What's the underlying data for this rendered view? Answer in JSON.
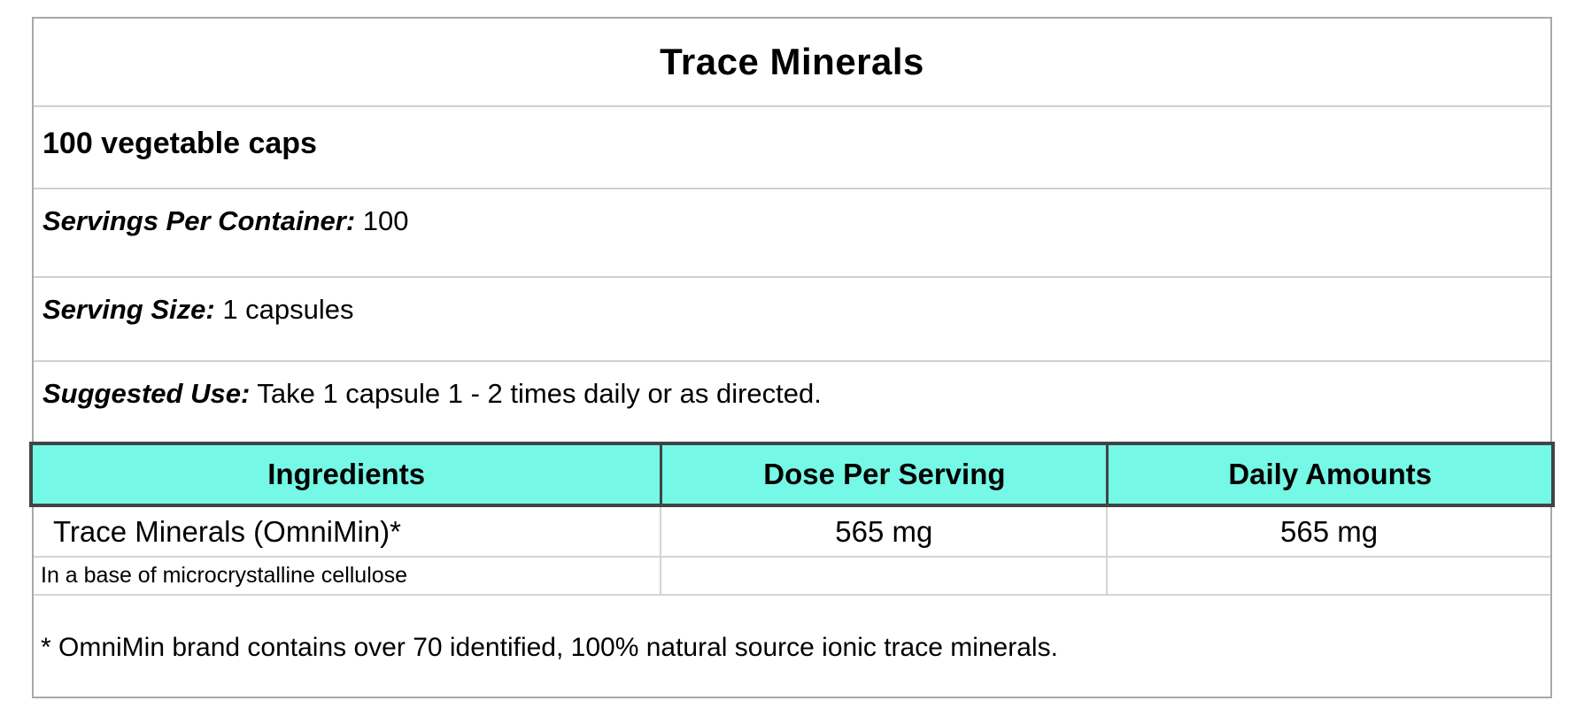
{
  "label": {
    "title": "Trace Minerals",
    "subtitle": "100 vegetable caps",
    "servings_per_container": {
      "label": "Servings Per Container:",
      "value": "100"
    },
    "serving_size": {
      "label": "Serving Size:",
      "value": "1 capsules"
    },
    "suggested_use": {
      "label": "Suggested Use:",
      "value": "Take 1 capsule 1 - 2 times daily or as directed."
    },
    "footnote": "* OmniMin brand contains over 70 identified, 100% natural source ionic trace minerals."
  },
  "table": {
    "headers": [
      "Ingredients",
      "Dose Per Serving",
      "Daily Amounts"
    ],
    "rows": [
      {
        "ingredient": "Trace Minerals (OmniMin)*",
        "dose": "565 mg",
        "daily": "565 mg"
      },
      {
        "ingredient": "In a base of microcrystalline cellulose",
        "dose": "",
        "daily": ""
      }
    ]
  },
  "colors": {
    "header_bg": "#75f8e5",
    "header_border": "#3f4445",
    "grid_line": "#d4d4d4",
    "outer_border": "#a9a9a9"
  }
}
